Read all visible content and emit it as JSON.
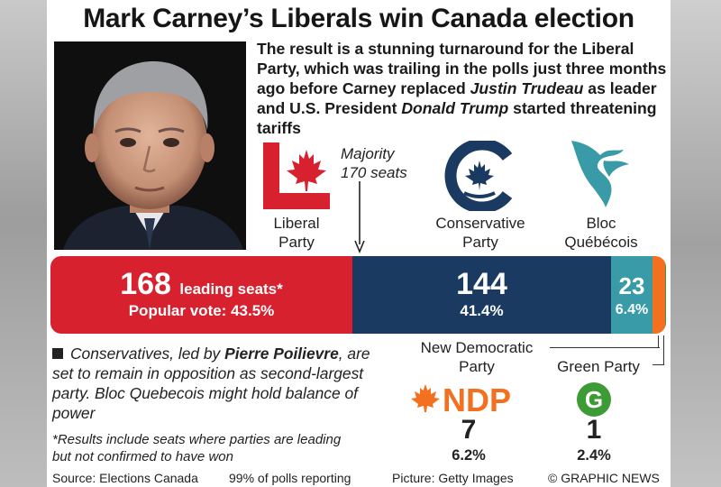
{
  "headline": "Mark Carney’s Liberals win Canada election",
  "lede": {
    "part1": "The result is a stunning turnaround for the Liberal Party, which was trailing in the polls just three months ago before Carney replaced ",
    "name1": "Justin Trudeau",
    "part2": " as leader and U.S. President ",
    "name2": "Donald Trump",
    "part3": " started threatening tariffs"
  },
  "majority": {
    "line1": "Majority",
    "line2": "170 seats",
    "seats": 170
  },
  "parties": {
    "liberal": {
      "line1": "Liberal",
      "line2": "Party"
    },
    "conservative": {
      "line1": "Conservative",
      "line2": "Party"
    },
    "bloc": {
      "line1": "Bloc",
      "line2": "Québécois"
    },
    "ndp": {
      "line1": "New Democratic",
      "line2": "Party",
      "logo_text": "NDP"
    },
    "green": {
      "label": "Green Party",
      "logo_text": "G"
    }
  },
  "bar_labels": {
    "liberal_seats": "168",
    "liberal_seats_suffix": "leading seats*",
    "liberal_vote": "Popular vote: 43.5%",
    "conservative_seats": "144",
    "conservative_vote": "41.4%",
    "bloc_seats": "23",
    "bloc_vote": "6.4%"
  },
  "ndp_result": {
    "seats": "7",
    "vote": "6.2%"
  },
  "green_result": {
    "seats": "1",
    "vote": "2.4%"
  },
  "commentary": {
    "part1": "Conservatives, led by ",
    "name": "Pierre Poilievre",
    "part2": ", are set to remain in opposition as second-largest party. Bloc Quebecois might hold balance of power"
  },
  "note": "*Results include seats where parties are leading but not confirmed to have won",
  "footer": {
    "source": "Source: Elections Canada",
    "polls": "99% of polls reporting",
    "picture": "Picture: Getty Images",
    "credit": "© GRAPHIC NEWS"
  },
  "colors": {
    "liberal": "#d7212e",
    "conservative": "#1a3a62",
    "bloc": "#3a9ba8",
    "ndp": "#f37021",
    "green": "#3d9b35",
    "text": "#222222"
  },
  "chart_data": {
    "type": "bar",
    "categories": [
      "Liberal Party",
      "Conservative Party",
      "Bloc Québécois",
      "New Democratic Party",
      "Green Party"
    ],
    "series": [
      {
        "name": "leading seats",
        "values": [
          168,
          144,
          23,
          7,
          1
        ]
      },
      {
        "name": "Popular vote",
        "values": [
          43.5,
          41.4,
          6.4,
          6.2,
          2.4
        ]
      }
    ],
    "title": "Mark Carney’s Liberals win Canada election",
    "annotation": "Majority 170 seats",
    "stacked_horizontal": true
  }
}
